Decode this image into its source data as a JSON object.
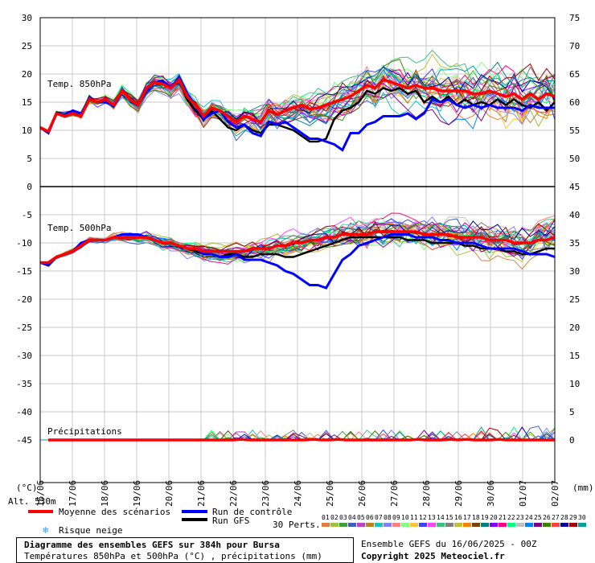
{
  "chart_data": {
    "type": "line",
    "title": "Diagramme des ensembles GEFS sur 384h pour Bursa",
    "subtitle": "Températures 850hPa et 500hPa (°C) , précipitations (mm)",
    "run_info": "Ensemble GEFS du 16/06/2025 - 00Z",
    "copyright": "Copyright 2025 Meteociel.fr",
    "x_labels": [
      "17/06",
      "18/06",
      "19/06",
      "20/06",
      "21/06",
      "22/06",
      "23/06",
      "24/06",
      "25/06",
      "26/06",
      "27/06",
      "28/06",
      "29/06",
      "30/06",
      "01/07",
      "02/07"
    ],
    "first_x_label": "16/06",
    "y_left_unit": "(°C)",
    "y_right_unit": "(mm)",
    "y_left_ticks": [
      30,
      25,
      20,
      15,
      10,
      5,
      0,
      -5,
      -10,
      -15,
      -20,
      -25,
      -30,
      -35,
      -40,
      -45
    ],
    "y_right_ticks": [
      75,
      70,
      65,
      60,
      55,
      50,
      45,
      40,
      35,
      30,
      25,
      20,
      15,
      10,
      5,
      0
    ],
    "ylim": [
      -45,
      30
    ],
    "altitude": "Alt. 530m",
    "panels": {
      "t850": {
        "label": "Temp. 850hPa",
        "mean": [
          10.5,
          9.8,
          13,
          12.5,
          13,
          12.5,
          15.5,
          15,
          15.5,
          14.5,
          17,
          15.5,
          14.5,
          17.5,
          18.5,
          18.2,
          17.5,
          19,
          16,
          14.5,
          12.5,
          14,
          13.5,
          12.5,
          11.5,
          12.5,
          12,
          11.5,
          13.5,
          12.8,
          13.5,
          14,
          14.5,
          13.8,
          14,
          14.5,
          15,
          15.5,
          16,
          17,
          18,
          17.5,
          19,
          18.5,
          18,
          17.5,
          18,
          17.5,
          17.5,
          17,
          17,
          17,
          17,
          16.5,
          16.5,
          17,
          16.5,
          16,
          16.5,
          15.5,
          16.5,
          15.5,
          16.5,
          16
        ],
        "control": [
          10.5,
          9.5,
          13,
          12.8,
          13.5,
          13,
          15.5,
          15,
          15,
          14.5,
          17,
          15.5,
          14.5,
          17,
          18.5,
          18.8,
          17.5,
          19.5,
          16.5,
          14.5,
          12,
          13,
          13.5,
          11.5,
          10.5,
          11,
          9.5,
          9,
          11.5,
          11,
          11.5,
          10.5,
          9.5,
          8.5,
          8.5,
          8,
          7.5,
          6.5,
          9.5,
          9.5,
          11,
          11.5,
          12.5,
          12.5,
          12.5,
          13,
          12,
          13,
          15.5,
          15,
          15.5,
          14.5,
          14,
          14.5,
          14,
          14.5,
          14,
          14,
          14,
          13.5,
          14.5,
          14,
          14,
          14
        ],
        "gfs": [
          10.5,
          9.8,
          13.2,
          12.8,
          13.5,
          13,
          15.5,
          15,
          15.5,
          14.5,
          17,
          15.8,
          14.5,
          17.5,
          18.5,
          18.5,
          17.5,
          19,
          15.5,
          13.5,
          12,
          13.5,
          12,
          10.5,
          10,
          11,
          10,
          9.5,
          11,
          11,
          10.5,
          10,
          9,
          8,
          8,
          8.5,
          12,
          13.5,
          14,
          15,
          17,
          16.5,
          17.5,
          17,
          17.5,
          16.5,
          17,
          15,
          16,
          15,
          16,
          14.5,
          15.5,
          14.5,
          15,
          14.5,
          15.5,
          14.5,
          15.5,
          14.5,
          14,
          15,
          13.5,
          15
        ]
      },
      "t500": {
        "label": "Temp. 500hPa",
        "mean": [
          -13.5,
          -13.5,
          -12.5,
          -12,
          -11.5,
          -10.5,
          -9.5,
          -9.5,
          -9.5,
          -9,
          -9,
          -9,
          -9,
          -9,
          -9.5,
          -10,
          -10,
          -10.5,
          -11,
          -11,
          -11.5,
          -11.5,
          -11.5,
          -11.5,
          -11.5,
          -11.5,
          -11,
          -11,
          -11,
          -10.5,
          -10.5,
          -10,
          -10,
          -9.5,
          -9.5,
          -9,
          -9,
          -8.5,
          -8.5,
          -8.5,
          -8.5,
          -8,
          -8,
          -8,
          -8,
          -8,
          -8,
          -8.5,
          -8.5,
          -8.5,
          -8.5,
          -9,
          -9,
          -9,
          -9,
          -9.5,
          -9.5,
          -9.5,
          -10,
          -10,
          -10,
          -9.5,
          -9.5,
          -9
        ],
        "control": [
          -13.5,
          -14,
          -12.5,
          -12,
          -11.5,
          -10,
          -9.5,
          -9.5,
          -9.5,
          -9,
          -8.5,
          -8.5,
          -8.5,
          -9,
          -9.5,
          -10,
          -10,
          -10.5,
          -11,
          -11,
          -12,
          -12,
          -12.5,
          -12.5,
          -12,
          -13,
          -13,
          -13,
          -13.5,
          -14,
          -15,
          -15.5,
          -16.5,
          -17.5,
          -17.5,
          -18,
          -15.5,
          -13,
          -12,
          -10.5,
          -10,
          -9.5,
          -9,
          -8.5,
          -8.5,
          -8.5,
          -9,
          -9,
          -9,
          -9.5,
          -9.5,
          -10,
          -10,
          -10,
          -10.5,
          -11,
          -11,
          -11,
          -11,
          -11.5,
          -12,
          -12,
          -12,
          -12.5
        ],
        "gfs": [
          -13.5,
          -14,
          -12.5,
          -12,
          -11.5,
          -10.5,
          -9.5,
          -9.5,
          -9.5,
          -9,
          -9,
          -9,
          -9,
          -9,
          -9.5,
          -10,
          -10,
          -10.5,
          -11,
          -11.5,
          -12,
          -12,
          -12.5,
          -12,
          -12,
          -12.5,
          -12.5,
          -12,
          -12,
          -12,
          -12.5,
          -12.5,
          -12,
          -11.5,
          -11,
          -10.5,
          -10,
          -9.5,
          -9,
          -9,
          -9,
          -9,
          -9,
          -9,
          -9,
          -9.5,
          -9.5,
          -9.5,
          -10,
          -10,
          -10,
          -10,
          -10.5,
          -10.5,
          -11,
          -11,
          -11,
          -11.5,
          -11.5,
          -12,
          -12,
          -11.5,
          -11,
          -11
        ]
      },
      "precip": {
        "label": "Précipitations",
        "mean": [
          0,
          0,
          0,
          0,
          0,
          0,
          0,
          0,
          0,
          0,
          0,
          0,
          0,
          0,
          0,
          0,
          0,
          0,
          0,
          0,
          0,
          0,
          0,
          0,
          0.1,
          0,
          0,
          0,
          0,
          0,
          0,
          0,
          0,
          0.1,
          0,
          0,
          0.1,
          0,
          0,
          0,
          0,
          0,
          0,
          0,
          0,
          0,
          0.1,
          0,
          0,
          0,
          0.1,
          0,
          0.1,
          0,
          0,
          0,
          0.1,
          0,
          0,
          0,
          0,
          0,
          0,
          0
        ]
      }
    },
    "legend": {
      "mean": "Moyenne des scénarios",
      "control": "Run de contrôle",
      "gfs": "Run GFS",
      "snow": "Risque neige",
      "perts_label": "30 Perts.",
      "perts": [
        "01",
        "02",
        "03",
        "04",
        "05",
        "06",
        "07",
        "08",
        "09",
        "10",
        "11",
        "12",
        "13",
        "14",
        "15",
        "16",
        "17",
        "18",
        "19",
        "20",
        "21",
        "22",
        "23",
        "24",
        "25",
        "26",
        "27",
        "28",
        "29",
        "30"
      ],
      "pert_colors": [
        "#e08040",
        "#a0c040",
        "#40a040",
        "#4060c0",
        "#c040c0",
        "#c08020",
        "#20c0c0",
        "#8080ff",
        "#ff8080",
        "#80ff80",
        "#ffc040",
        "#4040ff",
        "#ff40ff",
        "#40c080",
        "#808080",
        "#c0c040",
        "#ff8000",
        "#804000",
        "#008080",
        "#8000ff",
        "#ff0080",
        "#00ff80",
        "#c0c0c0",
        "#0080ff",
        "#800080",
        "#408000",
        "#ff4040",
        "#0000a0",
        "#a00000",
        "#00a0a0"
      ]
    },
    "colors": {
      "mean": "#ff0000",
      "control": "#0000ff",
      "gfs": "#000000",
      "grid": "#c8c8c8",
      "axis": "#000000"
    }
  }
}
